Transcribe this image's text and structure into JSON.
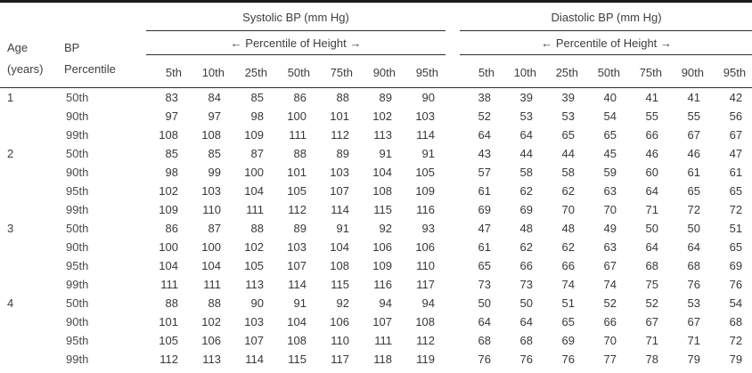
{
  "table": {
    "age_header": {
      "line1": "Age",
      "line2": "(years)"
    },
    "bp_header": {
      "line1": "BP",
      "line2": "Percentile"
    },
    "systolic_group": "Systolic BP (mm Hg)",
    "diastolic_group": "Diastolic BP (mm Hg)",
    "height_percentile_label": "← Percentile of Height →",
    "height_percentiles": [
      "5th",
      "10th",
      "25th",
      "50th",
      "75th",
      "90th",
      "95th"
    ],
    "rows": [
      {
        "age": "1",
        "bp": "50th",
        "sys": [
          83,
          84,
          85,
          86,
          88,
          89,
          90
        ],
        "dia": [
          38,
          39,
          39,
          40,
          41,
          41,
          42
        ]
      },
      {
        "age": "",
        "bp": "90th",
        "sys": [
          97,
          97,
          98,
          100,
          101,
          102,
          103
        ],
        "dia": [
          52,
          53,
          53,
          54,
          55,
          55,
          56
        ]
      },
      {
        "age": "",
        "bp": "99th",
        "sys": [
          108,
          108,
          109,
          111,
          112,
          113,
          114
        ],
        "dia": [
          64,
          64,
          65,
          65,
          66,
          67,
          67
        ]
      },
      {
        "age": "2",
        "bp": "50th",
        "sys": [
          85,
          85,
          87,
          88,
          89,
          91,
          91
        ],
        "dia": [
          43,
          44,
          44,
          45,
          46,
          46,
          47
        ]
      },
      {
        "age": "",
        "bp": "90th",
        "sys": [
          98,
          99,
          100,
          101,
          103,
          104,
          105
        ],
        "dia": [
          57,
          58,
          58,
          59,
          60,
          61,
          61
        ]
      },
      {
        "age": "",
        "bp": "95th",
        "sys": [
          102,
          103,
          104,
          105,
          107,
          108,
          109
        ],
        "dia": [
          61,
          62,
          62,
          63,
          64,
          65,
          65
        ]
      },
      {
        "age": "",
        "bp": "99th",
        "sys": [
          109,
          110,
          111,
          112,
          114,
          115,
          116
        ],
        "dia": [
          69,
          69,
          70,
          70,
          71,
          72,
          72
        ]
      },
      {
        "age": "3",
        "bp": "50th",
        "sys": [
          86,
          87,
          88,
          89,
          91,
          92,
          93
        ],
        "dia": [
          47,
          48,
          48,
          49,
          50,
          50,
          51
        ]
      },
      {
        "age": "",
        "bp": "90th",
        "sys": [
          100,
          100,
          102,
          103,
          104,
          106,
          106
        ],
        "dia": [
          61,
          62,
          62,
          63,
          64,
          64,
          65
        ]
      },
      {
        "age": "",
        "bp": "95th",
        "sys": [
          104,
          104,
          105,
          107,
          108,
          109,
          110
        ],
        "dia": [
          65,
          66,
          66,
          67,
          68,
          68,
          69
        ]
      },
      {
        "age": "",
        "bp": "99th",
        "sys": [
          111,
          111,
          113,
          114,
          115,
          116,
          117
        ],
        "dia": [
          73,
          73,
          74,
          74,
          75,
          76,
          76
        ]
      },
      {
        "age": "4",
        "bp": "50th",
        "sys": [
          88,
          88,
          90,
          91,
          92,
          94,
          94
        ],
        "dia": [
          50,
          50,
          51,
          52,
          52,
          53,
          54
        ]
      },
      {
        "age": "",
        "bp": "90th",
        "sys": [
          101,
          102,
          103,
          104,
          106,
          107,
          108
        ],
        "dia": [
          64,
          64,
          65,
          66,
          67,
          67,
          68
        ]
      },
      {
        "age": "",
        "bp": "95th",
        "sys": [
          105,
          106,
          107,
          108,
          110,
          111,
          112
        ],
        "dia": [
          68,
          68,
          69,
          70,
          71,
          71,
          72
        ]
      },
      {
        "age": "",
        "bp": "99th",
        "sys": [
          112,
          113,
          114,
          115,
          117,
          118,
          119
        ],
        "dia": [
          76,
          76,
          76,
          77,
          78,
          79,
          79
        ]
      }
    ]
  }
}
